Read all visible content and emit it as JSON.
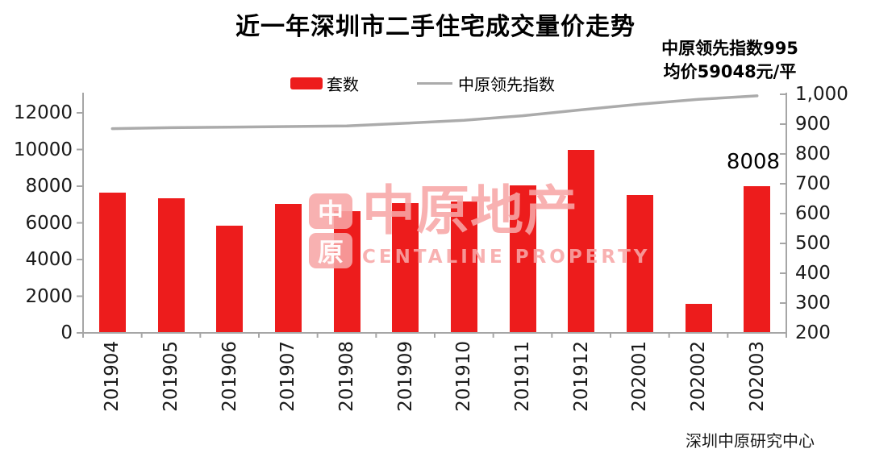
{
  "title": "近一年深圳市二手住宅成交量价走势",
  "legend": {
    "units_label": "套数",
    "index_label": "中原领先指数"
  },
  "annotation": {
    "line1": "中原领先指数995",
    "line2": "均价59048元/平"
  },
  "footer": "深圳中原研究中心",
  "watermark": {
    "logo_char_top": "中",
    "logo_char_bottom": "原",
    "brand": "中原地产",
    "brand_en": "CENTALINE PROPERTY"
  },
  "colors": {
    "bar_red": "#ED1C1C",
    "line_gray": "#ABABAB",
    "axis_gray": "#A6A6A6",
    "watermark_pink": "rgba(247,166,166,0.88)"
  },
  "chart_data": {
    "type": "bar",
    "title": "近一年深圳市二手住宅成交量价走势",
    "categories": [
      "201904",
      "201905",
      "201906",
      "201907",
      "201908",
      "201909",
      "201910",
      "201911",
      "201912",
      "202001",
      "202002",
      "202003"
    ],
    "series": [
      {
        "name": "套数",
        "type": "bar",
        "axis": "left",
        "color": "#ED1C1C",
        "values": [
          7650,
          7350,
          5850,
          7050,
          6620,
          7090,
          7150,
          8050,
          9970,
          7500,
          1600,
          8008
        ]
      },
      {
        "name": "中原领先指数",
        "type": "line",
        "axis": "right",
        "color": "#ABABAB",
        "values": [
          885,
          888,
          890,
          892,
          894,
          903,
          913,
          928,
          948,
          967,
          983,
          995
        ]
      }
    ],
    "left_axis": {
      "min": 0,
      "max": 12000,
      "tick_values": [
        12000,
        10000,
        8000,
        6000,
        4000,
        2000,
        0
      ],
      "tick_labels": [
        "12000",
        "10000",
        "8000",
        "6000",
        "4000",
        "2000",
        "0"
      ]
    },
    "right_axis": {
      "min": 200,
      "max": 1000,
      "tick_values": [
        1000,
        900,
        800,
        700,
        600,
        500,
        400,
        300,
        200
      ],
      "tick_labels": [
        "1,000",
        "900",
        "800",
        "700",
        "600",
        "500",
        "400",
        "300",
        "200"
      ]
    },
    "end_label": "8008",
    "legend_position": "top",
    "grid": false,
    "x_label_rotation": 90
  }
}
